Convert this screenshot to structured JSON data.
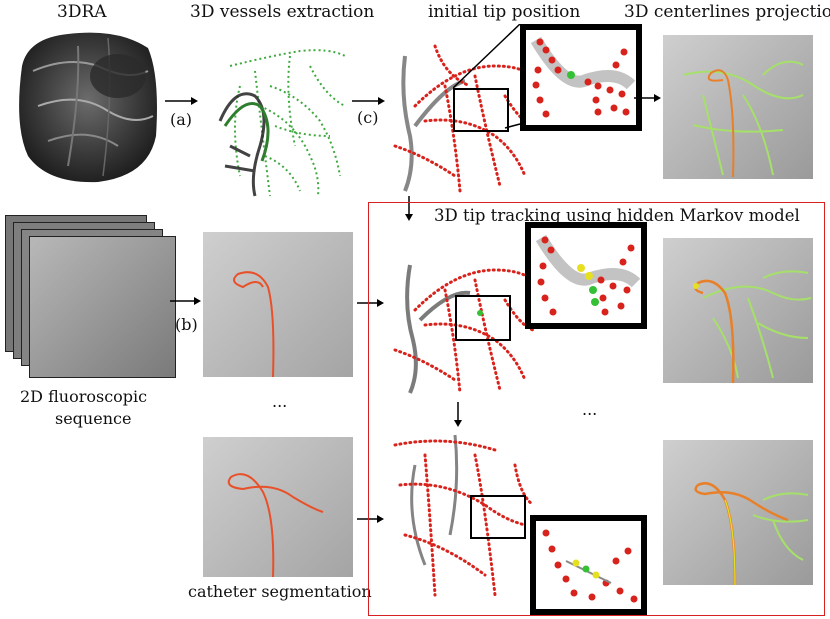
{
  "titles": {
    "dra": "3DRA",
    "vessels": "3D vessels extraction",
    "initial_tip": "initial tip position",
    "projection": "3D centerlines projection",
    "tracking": "3D tip tracking using hidden Markov model"
  },
  "labels": {
    "a": "(a)",
    "b": "(b)",
    "c": "(c)",
    "fluoro_line1": "2D fluoroscopic",
    "fluoro_line2": "sequence",
    "segmentation": "catheter segmentation",
    "ellipsis_mid": "...",
    "ellipsis_right": "..."
  },
  "colors": {
    "vessel_green": "#3fa93f",
    "catheter_orange": "#e8502a",
    "dot_red": "#d8231c",
    "tip_green": "#35c135",
    "tip_yellow": "#e6e021",
    "frame_red": "#d72020",
    "projection_green": "#a6e06a"
  }
}
